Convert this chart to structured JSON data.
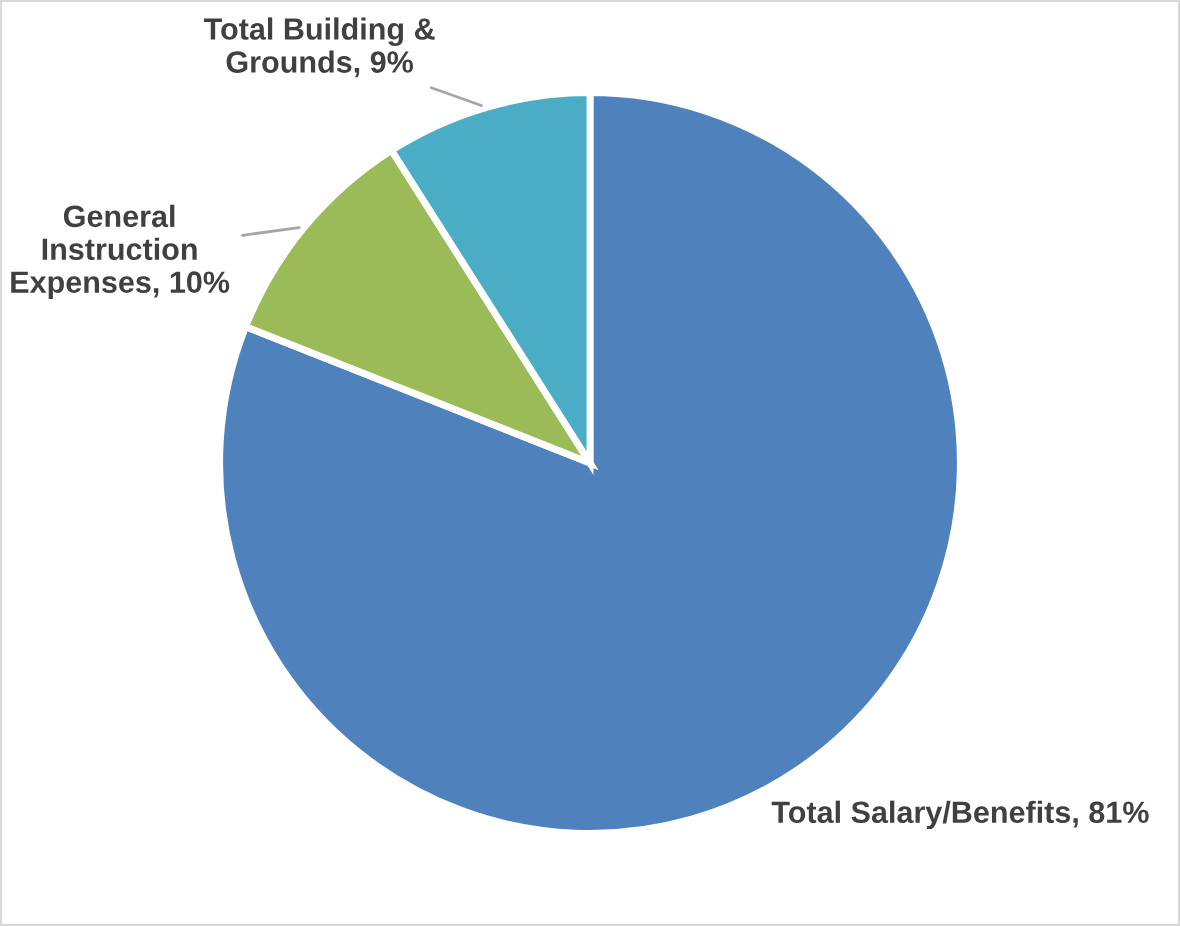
{
  "chart_data": {
    "type": "pie",
    "categories": [
      "Total Salary/Benefits",
      "General\nInstruction\nExpenses",
      "Total Building &\nGrounds"
    ],
    "values": [
      81,
      10,
      9
    ],
    "colors": [
      "#4f81bd",
      "#9bbb59",
      "#4bacc6"
    ],
    "value_labels": [
      "81%",
      "10%",
      "9%"
    ]
  }
}
